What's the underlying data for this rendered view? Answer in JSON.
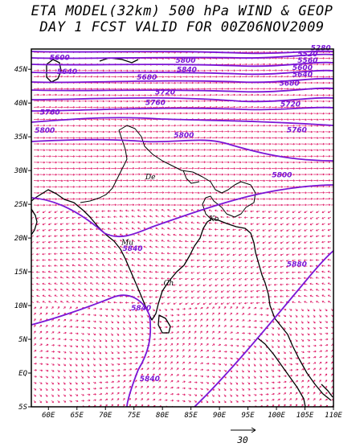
{
  "title": {
    "line1": "ETA MODEL(32km) 500 hPa WIND & GEOP",
    "line2": "DAY 1 FCST VALID FOR 00Z06NOV2009"
  },
  "colors": {
    "frame": "#000000",
    "coast": "#000000",
    "wind": "#e0206a",
    "contour": "#7b16d6",
    "contour_label": "#7b16d6"
  },
  "map": {
    "lon_range": [
      57,
      110
    ],
    "lat_range": [
      -5,
      48
    ],
    "lon_ticks": [
      {
        "value": 60,
        "label": "60E"
      },
      {
        "value": 65,
        "label": "65E"
      },
      {
        "value": 70,
        "label": "70E"
      },
      {
        "value": 75,
        "label": "75E"
      },
      {
        "value": 80,
        "label": "80E"
      },
      {
        "value": 85,
        "label": "85E"
      },
      {
        "value": 90,
        "label": "90E"
      },
      {
        "value": 95,
        "label": "95E"
      },
      {
        "value": 100,
        "label": "100E"
      },
      {
        "value": 105,
        "label": "105E"
      },
      {
        "value": 110,
        "label": "110E"
      }
    ],
    "lat_ticks": [
      {
        "value": 45,
        "label": "45N"
      },
      {
        "value": 40,
        "label": "40N"
      },
      {
        "value": 35,
        "label": "35N"
      },
      {
        "value": 30,
        "label": "30N"
      },
      {
        "value": 25,
        "label": "25N"
      },
      {
        "value": 20,
        "label": "20N"
      },
      {
        "value": 15,
        "label": "15N"
      },
      {
        "value": 10,
        "label": "10N"
      },
      {
        "value": 5,
        "label": "5N"
      },
      {
        "value": 0,
        "label": "EQ"
      },
      {
        "value": -5,
        "label": "5S"
      }
    ],
    "contour_labels": [
      {
        "text": "5600",
        "lon": 60.2,
        "lat": 46.4
      },
      {
        "text": "5640",
        "lon": 61.5,
        "lat": 44.3
      },
      {
        "text": "5800",
        "lon": 82.3,
        "lat": 46.0
      },
      {
        "text": "5280",
        "lon": 106.0,
        "lat": 47.8
      },
      {
        "text": "5520",
        "lon": 103.7,
        "lat": 46.9
      },
      {
        "text": "5560",
        "lon": 103.7,
        "lat": 46.0
      },
      {
        "text": "5600",
        "lon": 102.8,
        "lat": 44.9
      },
      {
        "text": "5640",
        "lon": 102.8,
        "lat": 43.9
      },
      {
        "text": "5680",
        "lon": 100.5,
        "lat": 42.6
      },
      {
        "text": "5680",
        "lon": 75.5,
        "lat": 43.5
      },
      {
        "text": "5840",
        "lon": 82.5,
        "lat": 44.6
      },
      {
        "text": "5720",
        "lon": 78.7,
        "lat": 41.3
      },
      {
        "text": "5760",
        "lon": 77.0,
        "lat": 39.7
      },
      {
        "text": "5720",
        "lon": 100.7,
        "lat": 39.5
      },
      {
        "text": "5760",
        "lon": 58.5,
        "lat": 38.3
      },
      {
        "text": "5800",
        "lon": 57.6,
        "lat": 35.6
      },
      {
        "text": "5800",
        "lon": 82.0,
        "lat": 34.9
      },
      {
        "text": "5760",
        "lon": 101.8,
        "lat": 35.7
      },
      {
        "text": "5800",
        "lon": 99.2,
        "lat": 29.0
      },
      {
        "text": "5840",
        "lon": 73.0,
        "lat": 18.1
      },
      {
        "text": "5880",
        "lon": 101.8,
        "lat": 15.8
      },
      {
        "text": "5840",
        "lon": 74.5,
        "lat": 9.3
      },
      {
        "text": "5840",
        "lon": 76.0,
        "lat": -1.2
      }
    ],
    "cities": [
      {
        "text": "De",
        "lon": 77.0,
        "lat": 28.7
      },
      {
        "text": "Ko",
        "lon": 88.2,
        "lat": 22.5
      },
      {
        "text": "Mu",
        "lon": 72.8,
        "lat": 19.0
      },
      {
        "text": "Ch",
        "lon": 80.2,
        "lat": 13.0
      }
    ]
  },
  "reference_vector": {
    "label": "30"
  }
}
